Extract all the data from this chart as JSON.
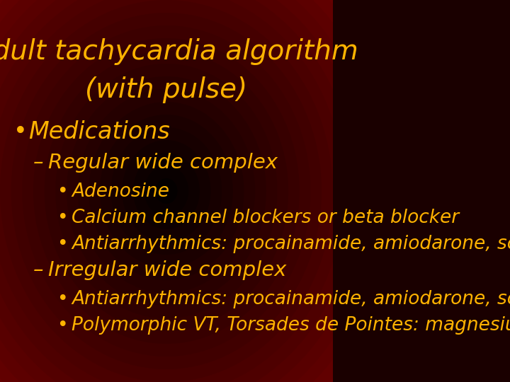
{
  "title_line1": "Adult tachycardia algorithm",
  "title_line2": "(with pulse)",
  "title_color": "#FFB300",
  "text_color": "#FFB300",
  "bg_color_center": "#8B0000",
  "bg_color_edge": "#1a0000",
  "title_fontsize": 28,
  "level1_fontsize": 24,
  "level2_fontsize": 21,
  "level3_fontsize": 19,
  "content": [
    {
      "level": 1,
      "bullet": "•",
      "text": "Medications"
    },
    {
      "level": 2,
      "bullet": "–",
      "text": "Regular wide complex"
    },
    {
      "level": 3,
      "bullet": "•",
      "text": "Adenosine"
    },
    {
      "level": 3,
      "bullet": "•",
      "text": "Calcium channel blockers or beta blocker"
    },
    {
      "level": 3,
      "bullet": "•",
      "text": "Antiarrhythmics: procainamide, amiodarone, sotolol"
    },
    {
      "level": 2,
      "bullet": "–",
      "text": "Irregular wide complex"
    },
    {
      "level": 3,
      "bullet": "•",
      "text": "Antiarrhythmics: procainamide, amiodarone, sotolol"
    },
    {
      "level": 3,
      "bullet": "•",
      "text": "Polymorphic VT, Torsades de Pointes: magnesium"
    }
  ]
}
